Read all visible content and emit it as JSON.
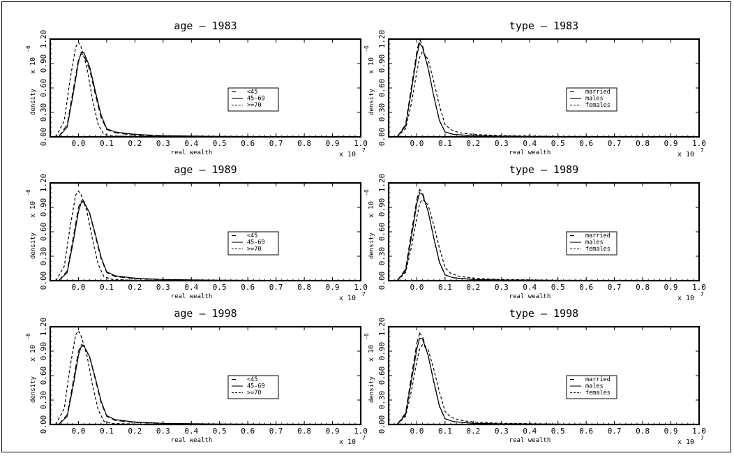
{
  "colors": {
    "background": "#ffffff",
    "ink": "#000000"
  },
  "chart_data": [
    {
      "type": "line",
      "title": "age — 1983",
      "xlabel": "real wealth",
      "ylabel": "density",
      "y_exponent_label": "x 10",
      "y_exponent_sup": "-6",
      "x_exponent_label": "x 10",
      "x_exponent_sup": "7",
      "xlim": [
        -0.1,
        1.0
      ],
      "ylim": [
        0,
        1.2
      ],
      "x_ticks": [
        "0.0",
        "0.1",
        "0.2",
        "0.3",
        "0.4",
        "0.5",
        "0.6",
        "0.7",
        "0.8",
        "0.9",
        "1.0"
      ],
      "y_ticks": [
        "0.00",
        "0.30",
        "0.60",
        "0.90",
        "1.20"
      ],
      "legend_position": "center-right",
      "series": [
        {
          "name": "<45",
          "style": "long-dash",
          "x": [
            -0.07,
            -0.04,
            -0.02,
            0.0,
            0.01,
            0.02,
            0.04,
            0.06,
            0.08,
            0.1,
            0.13,
            0.2,
            0.3,
            0.5,
            1.0
          ],
          "y": [
            0,
            0.15,
            0.55,
            0.95,
            1.02,
            1.0,
            0.82,
            0.52,
            0.24,
            0.09,
            0.05,
            0.02,
            0.01,
            0.003,
            0
          ]
        },
        {
          "name": "45-69",
          "style": "solid",
          "x": [
            -0.07,
            -0.04,
            -0.02,
            0.0,
            0.01,
            0.02,
            0.04,
            0.06,
            0.08,
            0.1,
            0.13,
            0.2,
            0.3,
            0.5,
            1.0
          ],
          "y": [
            0,
            0.12,
            0.5,
            0.92,
            1.04,
            1.03,
            0.86,
            0.56,
            0.27,
            0.1,
            0.06,
            0.03,
            0.015,
            0.005,
            0
          ]
        },
        {
          "name": ">=70",
          "style": "short-dash",
          "x": [
            -0.08,
            -0.05,
            -0.03,
            -0.01,
            0.0,
            0.01,
            0.03,
            0.05,
            0.07,
            0.09,
            0.12,
            0.2,
            0.4,
            1.0
          ],
          "y": [
            0,
            0.2,
            0.7,
            1.1,
            1.16,
            1.1,
            0.85,
            0.45,
            0.15,
            0.03,
            0.01,
            0.005,
            0.002,
            0
          ]
        }
      ]
    },
    {
      "type": "line",
      "title": "type — 1983",
      "xlabel": "real wealth",
      "ylabel": "density",
      "y_exponent_label": "x 10",
      "y_exponent_sup": "-6",
      "x_exponent_label": "x 10",
      "x_exponent_sup": "7",
      "xlim": [
        -0.1,
        1.0
      ],
      "ylim": [
        0,
        1.2
      ],
      "x_ticks": [
        "0.0",
        "0.1",
        "0.2",
        "0.3",
        "0.4",
        "0.5",
        "0.6",
        "0.7",
        "0.8",
        "0.9",
        "1.0"
      ],
      "y_ticks": [
        "0.00",
        "0.30",
        "0.60",
        "0.90",
        "1.20"
      ],
      "legend_position": "center-right",
      "series": [
        {
          "name": "married",
          "style": "long-dash",
          "x": [
            -0.07,
            -0.04,
            -0.02,
            0.0,
            0.01,
            0.02,
            0.04,
            0.06,
            0.08,
            0.1,
            0.13,
            0.2,
            0.3,
            0.5,
            1.0
          ],
          "y": [
            0,
            0.15,
            0.6,
            1.05,
            1.2,
            1.12,
            0.85,
            0.5,
            0.2,
            0.06,
            0.03,
            0.015,
            0.008,
            0.003,
            0
          ]
        },
        {
          "name": "males",
          "style": "solid",
          "x": [
            -0.07,
            -0.04,
            -0.02,
            0.0,
            0.01,
            0.02,
            0.04,
            0.06,
            0.08,
            0.1,
            0.13,
            0.2,
            0.3,
            0.5,
            1.0
          ],
          "y": [
            0,
            0.13,
            0.55,
            1.0,
            1.15,
            1.1,
            0.84,
            0.5,
            0.2,
            0.06,
            0.03,
            0.015,
            0.008,
            0.003,
            0
          ]
        },
        {
          "name": "females",
          "style": "short-dash",
          "x": [
            -0.07,
            -0.04,
            -0.02,
            0.0,
            0.01,
            0.02,
            0.04,
            0.06,
            0.08,
            0.1,
            0.12,
            0.15,
            0.2,
            0.3,
            0.5,
            1.0
          ],
          "y": [
            0,
            0.1,
            0.4,
            0.8,
            0.98,
            1.05,
            0.95,
            0.68,
            0.38,
            0.15,
            0.09,
            0.05,
            0.03,
            0.015,
            0.005,
            0
          ]
        }
      ]
    },
    {
      "type": "line",
      "title": "age — 1989",
      "xlabel": "real wealth",
      "ylabel": "density",
      "y_exponent_label": "x 10",
      "y_exponent_sup": "-6",
      "x_exponent_label": "x 10",
      "x_exponent_sup": "7",
      "xlim": [
        -0.1,
        1.0
      ],
      "ylim": [
        0,
        1.2
      ],
      "x_ticks": [
        "0.0",
        "0.1",
        "0.2",
        "0.3",
        "0.4",
        "0.5",
        "0.6",
        "0.7",
        "0.8",
        "0.9",
        "1.0"
      ],
      "y_ticks": [
        "0.00",
        "0.30",
        "0.60",
        "0.90",
        "1.20"
      ],
      "legend_position": "center-right",
      "series": [
        {
          "name": "<45",
          "style": "long-dash",
          "x": [
            -0.07,
            -0.04,
            -0.02,
            0.0,
            0.01,
            0.02,
            0.04,
            0.06,
            0.08,
            0.1,
            0.13,
            0.2,
            0.3,
            0.5,
            1.0
          ],
          "y": [
            0,
            0.12,
            0.5,
            0.9,
            0.98,
            0.97,
            0.82,
            0.55,
            0.27,
            0.1,
            0.05,
            0.025,
            0.012,
            0.004,
            0
          ]
        },
        {
          "name": "45-69",
          "style": "solid",
          "x": [
            -0.07,
            -0.04,
            -0.02,
            0.0,
            0.01,
            0.02,
            0.04,
            0.06,
            0.08,
            0.1,
            0.13,
            0.2,
            0.3,
            0.5,
            1.0
          ],
          "y": [
            0,
            0.1,
            0.45,
            0.85,
            0.96,
            0.96,
            0.83,
            0.57,
            0.29,
            0.11,
            0.06,
            0.03,
            0.015,
            0.005,
            0
          ]
        },
        {
          "name": ">=70",
          "style": "short-dash",
          "x": [
            -0.08,
            -0.05,
            -0.03,
            -0.01,
            0.0,
            0.01,
            0.03,
            0.05,
            0.07,
            0.09,
            0.12,
            0.2,
            0.4,
            1.0
          ],
          "y": [
            0,
            0.18,
            0.65,
            1.05,
            1.1,
            1.05,
            0.85,
            0.5,
            0.2,
            0.05,
            0.015,
            0.005,
            0.002,
            0
          ]
        }
      ]
    },
    {
      "type": "line",
      "title": "type — 1989",
      "xlabel": "real wealth",
      "ylabel": "density",
      "y_exponent_label": "x 10",
      "y_exponent_sup": "-6",
      "x_exponent_label": "x 10",
      "x_exponent_sup": "7",
      "xlim": [
        -0.1,
        1.0
      ],
      "ylim": [
        0,
        1.2
      ],
      "x_ticks": [
        "0.0",
        "0.1",
        "0.2",
        "0.3",
        "0.4",
        "0.5",
        "0.6",
        "0.7",
        "0.8",
        "0.9",
        "1.0"
      ],
      "y_ticks": [
        "0.00",
        "0.30",
        "0.60",
        "0.90",
        "1.20"
      ],
      "legend_position": "center-right",
      "series": [
        {
          "name": "married",
          "style": "long-dash",
          "x": [
            -0.07,
            -0.04,
            -0.02,
            0.0,
            0.01,
            0.02,
            0.04,
            0.06,
            0.08,
            0.1,
            0.13,
            0.2,
            0.3,
            0.5,
            1.0
          ],
          "y": [
            0,
            0.14,
            0.58,
            1.0,
            1.12,
            1.08,
            0.85,
            0.52,
            0.22,
            0.07,
            0.035,
            0.015,
            0.008,
            0.003,
            0
          ]
        },
        {
          "name": "males",
          "style": "solid",
          "x": [
            -0.07,
            -0.04,
            -0.02,
            0.0,
            0.01,
            0.02,
            0.04,
            0.06,
            0.08,
            0.1,
            0.13,
            0.2,
            0.3,
            0.5,
            1.0
          ],
          "y": [
            0,
            0.12,
            0.52,
            0.95,
            1.08,
            1.06,
            0.85,
            0.53,
            0.23,
            0.07,
            0.035,
            0.015,
            0.008,
            0.003,
            0
          ]
        },
        {
          "name": "females",
          "style": "short-dash",
          "x": [
            -0.07,
            -0.04,
            -0.02,
            0.0,
            0.01,
            0.02,
            0.04,
            0.06,
            0.08,
            0.1,
            0.12,
            0.15,
            0.2,
            0.3,
            0.5,
            1.0
          ],
          "y": [
            0,
            0.1,
            0.4,
            0.78,
            0.95,
            1.0,
            0.93,
            0.68,
            0.4,
            0.16,
            0.09,
            0.055,
            0.03,
            0.015,
            0.005,
            0
          ]
        }
      ]
    },
    {
      "type": "line",
      "title": "age — 1998",
      "xlabel": "real wealth",
      "ylabel": "density",
      "y_exponent_label": "x 10",
      "y_exponent_sup": "-6",
      "x_exponent_label": "x 10",
      "x_exponent_sup": "7",
      "xlim": [
        -0.1,
        1.0
      ],
      "ylim": [
        0,
        1.2
      ],
      "x_ticks": [
        "0.0",
        "0.1",
        "0.2",
        "0.3",
        "0.4",
        "0.5",
        "0.6",
        "0.7",
        "0.8",
        "0.9",
        "1.0"
      ],
      "y_ticks": [
        "0.00",
        "0.30",
        "0.60",
        "0.90",
        "1.20"
      ],
      "legend_position": "center-right",
      "series": [
        {
          "name": "<45",
          "style": "long-dash",
          "x": [
            -0.07,
            -0.04,
            -0.02,
            0.0,
            0.01,
            0.02,
            0.04,
            0.06,
            0.08,
            0.1,
            0.13,
            0.2,
            0.3,
            0.5,
            1.0
          ],
          "y": [
            0,
            0.12,
            0.5,
            0.9,
            0.98,
            0.97,
            0.82,
            0.55,
            0.27,
            0.1,
            0.05,
            0.025,
            0.012,
            0.004,
            0
          ]
        },
        {
          "name": "45-69",
          "style": "solid",
          "x": [
            -0.07,
            -0.04,
            -0.02,
            0.0,
            0.01,
            0.02,
            0.04,
            0.06,
            0.08,
            0.1,
            0.13,
            0.2,
            0.3,
            0.5,
            1.0
          ],
          "y": [
            0,
            0.1,
            0.45,
            0.85,
            0.96,
            0.96,
            0.83,
            0.57,
            0.29,
            0.11,
            0.06,
            0.03,
            0.015,
            0.005,
            0
          ]
        },
        {
          "name": ">=70",
          "style": "short-dash",
          "x": [
            -0.08,
            -0.05,
            -0.03,
            -0.01,
            0.0,
            0.01,
            0.03,
            0.05,
            0.07,
            0.09,
            0.12,
            0.2,
            0.4,
            1.0
          ],
          "y": [
            0,
            0.2,
            0.7,
            1.1,
            1.15,
            1.08,
            0.85,
            0.48,
            0.18,
            0.04,
            0.012,
            0.005,
            0.002,
            0
          ]
        }
      ]
    },
    {
      "type": "line",
      "title": "type — 1998",
      "xlabel": "real wealth",
      "ylabel": "density",
      "y_exponent_label": "x 10",
      "y_exponent_sup": "-6",
      "x_exponent_label": "x 10",
      "x_exponent_sup": "7",
      "xlim": [
        -0.1,
        1.0
      ],
      "ylim": [
        0,
        1.2
      ],
      "x_ticks": [
        "0.0",
        "0.1",
        "0.2",
        "0.3",
        "0.4",
        "0.5",
        "0.6",
        "0.7",
        "0.8",
        "0.9",
        "1.0"
      ],
      "y_ticks": [
        "0.00",
        "0.30",
        "0.60",
        "0.90",
        "1.20"
      ],
      "legend_position": "center-right",
      "series": [
        {
          "name": "married",
          "style": "long-dash",
          "x": [
            -0.07,
            -0.04,
            -0.02,
            0.0,
            0.01,
            0.02,
            0.04,
            0.06,
            0.08,
            0.1,
            0.13,
            0.2,
            0.3,
            0.5,
            1.0
          ],
          "y": [
            0,
            0.14,
            0.58,
            1.0,
            1.12,
            1.08,
            0.85,
            0.52,
            0.22,
            0.07,
            0.035,
            0.015,
            0.008,
            0.003,
            0
          ]
        },
        {
          "name": "males",
          "style": "solid",
          "x": [
            -0.07,
            -0.04,
            -0.02,
            0.0,
            0.01,
            0.02,
            0.04,
            0.06,
            0.08,
            0.1,
            0.13,
            0.2,
            0.3,
            0.5,
            1.0
          ],
          "y": [
            0,
            0.12,
            0.52,
            0.93,
            1.06,
            1.05,
            0.85,
            0.53,
            0.23,
            0.07,
            0.035,
            0.015,
            0.008,
            0.003,
            0
          ]
        },
        {
          "name": "females",
          "style": "short-dash",
          "x": [
            -0.07,
            -0.04,
            -0.02,
            0.0,
            0.01,
            0.02,
            0.04,
            0.06,
            0.08,
            0.1,
            0.12,
            0.15,
            0.2,
            0.3,
            0.5,
            1.0
          ],
          "y": [
            0,
            0.1,
            0.4,
            0.78,
            0.93,
            0.98,
            0.92,
            0.68,
            0.4,
            0.16,
            0.09,
            0.055,
            0.03,
            0.015,
            0.005,
            0
          ]
        }
      ]
    }
  ]
}
